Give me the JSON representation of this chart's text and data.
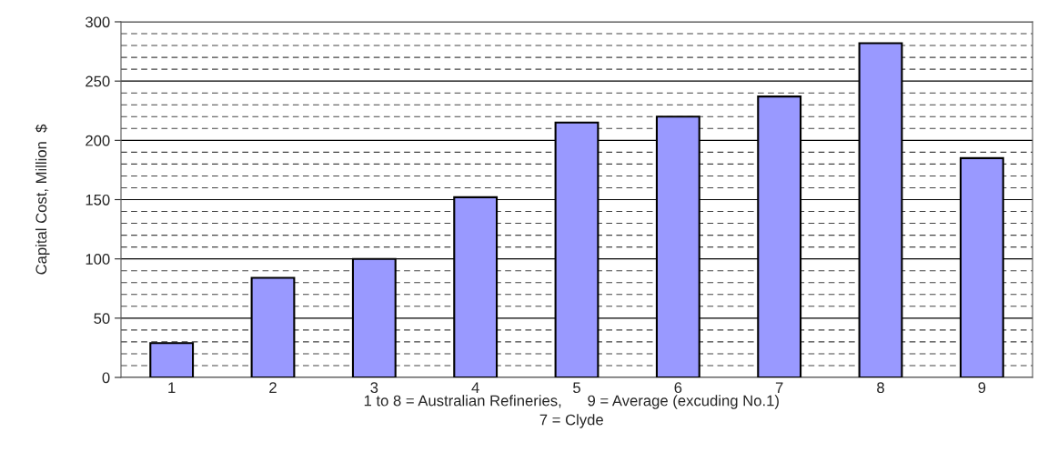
{
  "chart_data": {
    "type": "bar",
    "ylabel": "Capital Cost, Million  $",
    "categories": [
      "1",
      "2",
      "3",
      "4",
      "5",
      "6",
      "7",
      "8",
      "9"
    ],
    "values": [
      29,
      84,
      100,
      152,
      215,
      220,
      237,
      282,
      185
    ],
    "color": "#9999ff",
    "ylim": [
      0,
      300
    ],
    "yticks": [
      0,
      {
        "value": 10,
        "label": null
      },
      {
        "value": 20,
        "label": null
      },
      {
        "value": 30,
        "label": null
      },
      {
        "value": 40,
        "label": null
      },
      50,
      {
        "value": 60,
        "label": null
      },
      {
        "value": 70,
        "label": null
      },
      {
        "value": 80,
        "label": null
      },
      {
        "value": 90,
        "label": null
      },
      100,
      {
        "value": 110,
        "label": null
      },
      {
        "value": 120,
        "label": null
      },
      {
        "value": 130,
        "label": null
      },
      {
        "value": 140,
        "label": null
      },
      150,
      {
        "value": 160,
        "label": null
      },
      {
        "value": 170,
        "label": null
      },
      {
        "value": 180,
        "label": null
      },
      {
        "value": 190,
        "label": null
      },
      200,
      {
        "value": 210,
        "label": null
      },
      {
        "value": 220,
        "label": null
      },
      {
        "value": 230,
        "label": null
      },
      {
        "value": 240,
        "label": null
      },
      250,
      {
        "value": 260,
        "label": null
      },
      {
        "value": 270,
        "label": null
      },
      {
        "value": 280,
        "label": null
      },
      {
        "value": 290,
        "label": null
      },
      300
    ],
    "grid": "y",
    "annotations": [
      "1 to 8 = Australian Refineries,      9 = Average (excuding No.1)",
      "7 = Clyde"
    ]
  }
}
